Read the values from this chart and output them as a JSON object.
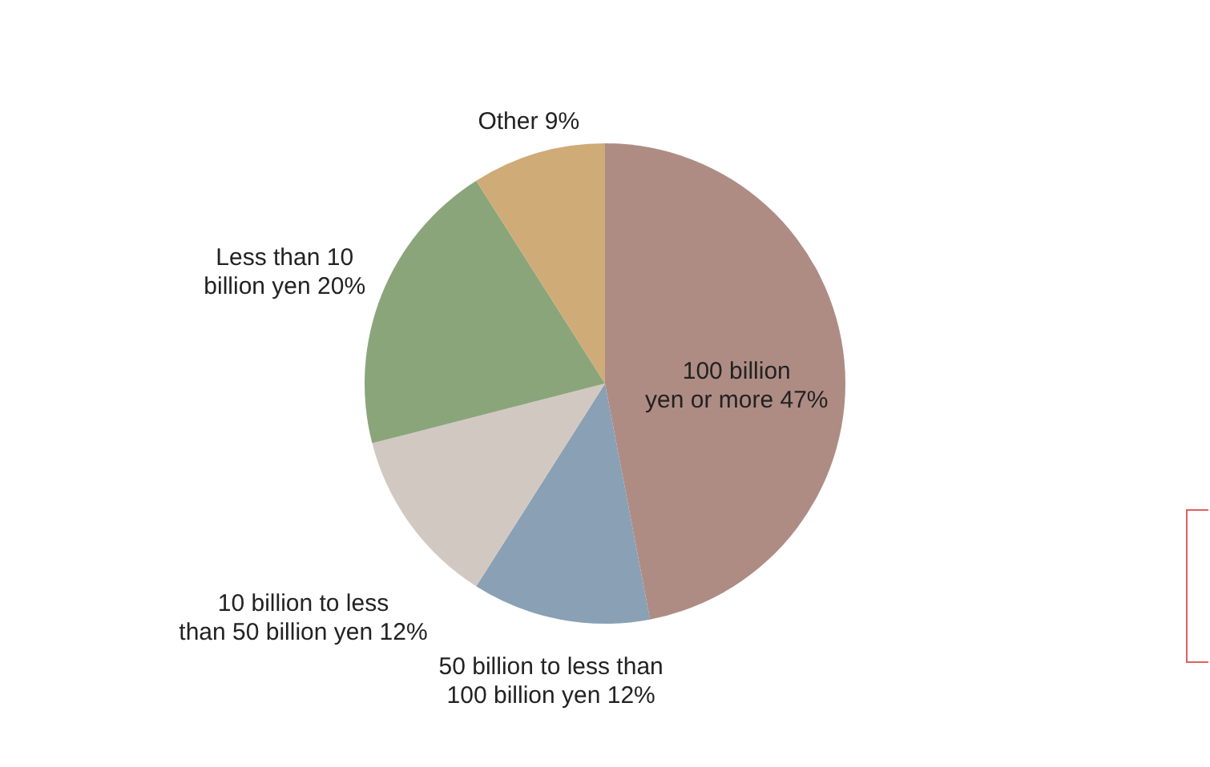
{
  "chart_data": {
    "type": "pie",
    "categories": [
      "100 billion yen or more",
      "50 billion to less than 100 billion yen",
      "10 billion to less than 50 billion yen",
      "Less than 10 billion yen",
      "Other"
    ],
    "values": [
      47,
      12,
      12,
      20,
      9
    ],
    "colors": [
      "#ae8c84",
      "#8aa0b4",
      "#d2c8c2",
      "#8ba57a",
      "#cfab78"
    ],
    "value_labels": [
      "47%",
      "12%",
      "12%",
      "20%",
      "9%"
    ]
  }
}
